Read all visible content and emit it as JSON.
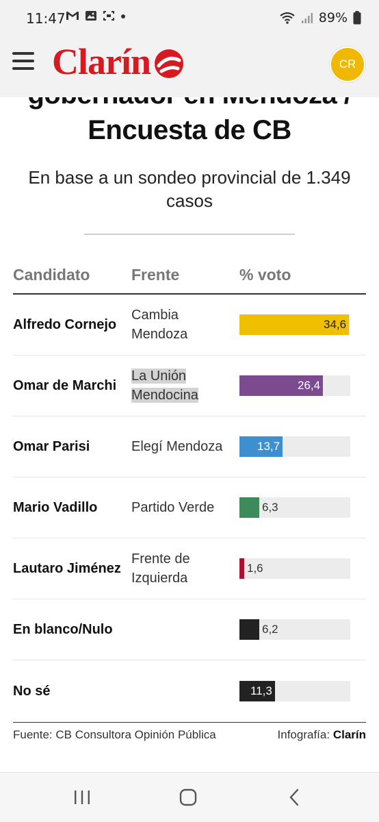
{
  "status_bar": {
    "time": "11:47",
    "battery": "89%",
    "icons_left": [
      "gmail-icon",
      "image-icon",
      "screenshot-icon",
      "dot-icon"
    ],
    "icons_right": [
      "wifi-icon",
      "signal-icon",
      "battery-icon"
    ]
  },
  "header": {
    "logo": "Clarín",
    "avatar_initials": "CR",
    "avatar_color": "#f0b800",
    "brand_color": "#d71a21"
  },
  "article": {
    "title_line1": "gobernador en Mendoza /",
    "title_line2": "Encuesta de CB",
    "subtitle": "En base a un sondeo provincial de 1.349 casos"
  },
  "table": {
    "headers": {
      "candidato": "Candidato",
      "frente": "Frente",
      "voto": "% voto"
    },
    "rows": [
      {
        "candidato": "Alfredo Cornejo",
        "frente": "Cambia Mendoza",
        "voto": "34,6",
        "value": 34.6,
        "color": "#f0c000",
        "label_inside": true,
        "label_color": "#222222",
        "highlight": false
      },
      {
        "candidato": "Omar de Marchi",
        "frente": "La Unión Mendocina",
        "voto": "26,4",
        "value": 26.4,
        "color": "#7b4a8f",
        "label_inside": true,
        "label_color": "#ffffff",
        "highlight": true
      },
      {
        "candidato": "Omar Parisi",
        "frente": "Elegí Mendoza",
        "voto": "13,7",
        "value": 13.7,
        "color": "#3e8fd0",
        "label_inside": true,
        "label_color": "#ffffff",
        "highlight": false
      },
      {
        "candidato": "Mario Vadillo",
        "frente": "Partido Verde",
        "voto": "6,3",
        "value": 6.3,
        "color": "#3d8a5a",
        "label_inside": false,
        "label_color": "#333333",
        "highlight": false
      },
      {
        "candidato": "Lautaro Jiménez",
        "frente": "Frente de Izquierda",
        "voto": "1,6",
        "value": 1.6,
        "color": "#b01030",
        "label_inside": false,
        "label_color": "#333333",
        "highlight": false
      },
      {
        "candidato": "En blanco/Nulo",
        "frente": "",
        "voto": "6,2",
        "value": 6.2,
        "color": "#222222",
        "label_inside": false,
        "label_color": "#333333",
        "highlight": false
      },
      {
        "candidato": "No sé",
        "frente": "",
        "voto": "11,3",
        "value": 11.3,
        "color": "#222222",
        "label_inside": true,
        "label_color": "#ffffff",
        "highlight": false
      }
    ]
  },
  "footer": {
    "source": "Fuente: CB Consultora Opinión Pública",
    "credit_prefix": "Infografía:",
    "credit_brand": "Clarín"
  },
  "nav_bar": {
    "buttons": [
      "recents-icon",
      "home-icon",
      "back-icon"
    ]
  }
}
